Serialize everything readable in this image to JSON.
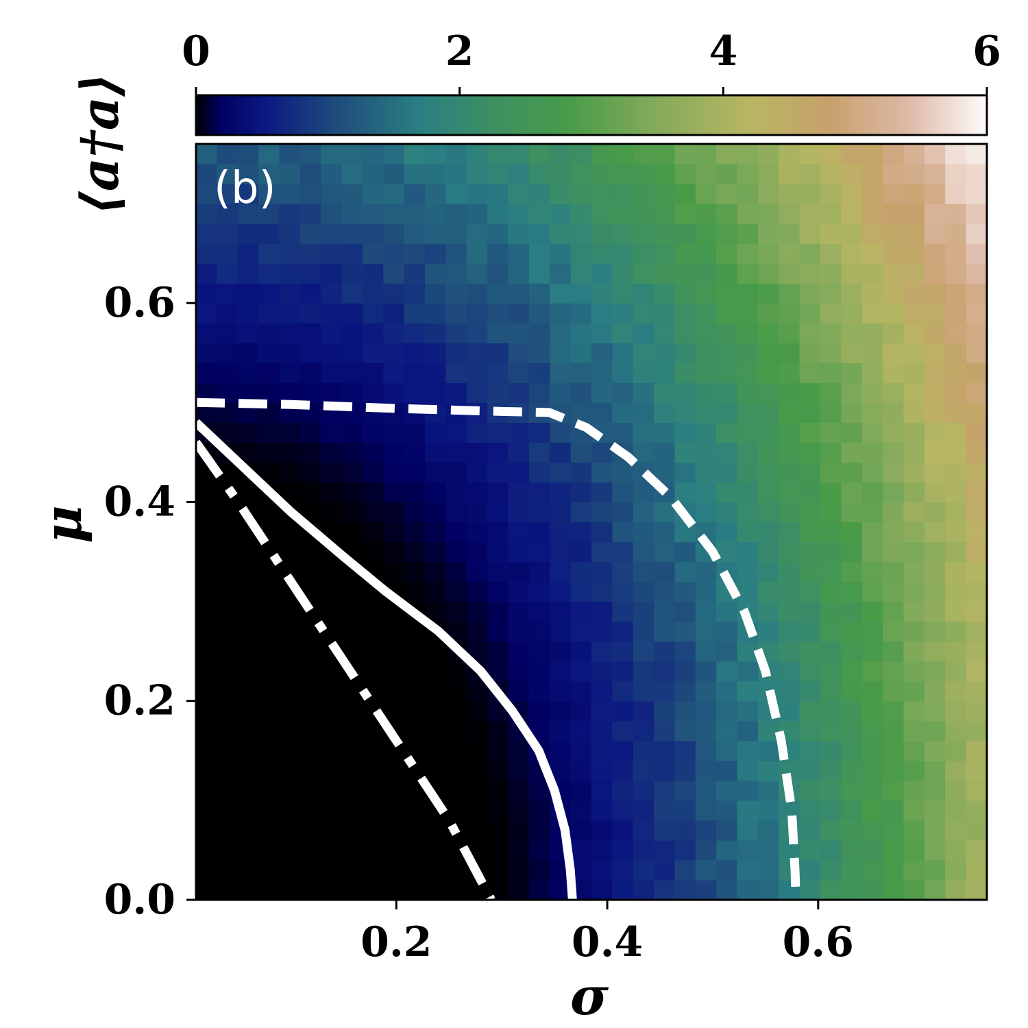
{
  "chart_data": {
    "type": "heatmap",
    "panel_label": "(b)",
    "xlabel": "σ",
    "ylabel": "μ",
    "colorbar_label": "⟨a†a⟩",
    "xlim": [
      0.01,
      0.76
    ],
    "ylim": [
      0.0,
      0.76
    ],
    "x_ticks": [
      0.2,
      0.4,
      0.6
    ],
    "x_tick_labels": [
      "0.2",
      "0.4",
      "0.6"
    ],
    "y_ticks": [
      0.0,
      0.2,
      0.4,
      0.6
    ],
    "y_tick_labels": [
      "0.0",
      "0.2",
      "0.4",
      "0.6"
    ],
    "colorbar_range": [
      0,
      6
    ],
    "colorbar_ticks": [
      0,
      2,
      4,
      6
    ],
    "colorbar_tick_labels": [
      "0",
      "2",
      "4",
      "6"
    ],
    "colormap": "gist_earth",
    "grid": false,
    "grid_resolution": 38,
    "value_description": "Mean photon number <a†a> over (σ, μ); ~0 (black) at lower-left, rising smoothly to ~6 at upper-right",
    "lines": [
      {
        "style": "dash-dot",
        "color": "#ffffff",
        "points": [
          [
            0.01,
            0.46
          ],
          [
            0.05,
            0.4
          ],
          [
            0.1,
            0.32
          ],
          [
            0.15,
            0.24
          ],
          [
            0.2,
            0.16
          ],
          [
            0.25,
            0.08
          ],
          [
            0.29,
            0.0
          ]
        ]
      },
      {
        "style": "solid",
        "color": "#ffffff",
        "points": [
          [
            0.01,
            0.48
          ],
          [
            0.05,
            0.44
          ],
          [
            0.1,
            0.39
          ],
          [
            0.15,
            0.345
          ],
          [
            0.19,
            0.31
          ],
          [
            0.24,
            0.27
          ],
          [
            0.28,
            0.23
          ],
          [
            0.31,
            0.19
          ],
          [
            0.335,
            0.15
          ],
          [
            0.35,
            0.11
          ],
          [
            0.36,
            0.07
          ],
          [
            0.365,
            0.03
          ],
          [
            0.367,
            0.0
          ]
        ]
      },
      {
        "style": "dashed",
        "color": "#ffffff",
        "points": [
          [
            0.01,
            0.5
          ],
          [
            0.1,
            0.498
          ],
          [
            0.2,
            0.494
          ],
          [
            0.3,
            0.491
          ],
          [
            0.345,
            0.49
          ],
          [
            0.38,
            0.475
          ],
          [
            0.42,
            0.445
          ],
          [
            0.46,
            0.405
          ],
          [
            0.5,
            0.35
          ],
          [
            0.53,
            0.29
          ],
          [
            0.55,
            0.23
          ],
          [
            0.565,
            0.16
          ],
          [
            0.575,
            0.09
          ],
          [
            0.578,
            0.03
          ],
          [
            0.579,
            0.0
          ]
        ]
      }
    ],
    "color_stops": [
      [
        0.0,
        "#000000"
      ],
      [
        0.03,
        "#000060"
      ],
      [
        0.08,
        "#0a1580"
      ],
      [
        0.18,
        "#1f4d7c"
      ],
      [
        0.28,
        "#2a7e83"
      ],
      [
        0.38,
        "#3e9061"
      ],
      [
        0.47,
        "#489b48"
      ],
      [
        0.57,
        "#7ea95a"
      ],
      [
        0.7,
        "#b8b663"
      ],
      [
        0.8,
        "#c7a16c"
      ],
      [
        0.9,
        "#deb9a6"
      ],
      [
        1.0,
        "#fdfbfb"
      ]
    ]
  }
}
